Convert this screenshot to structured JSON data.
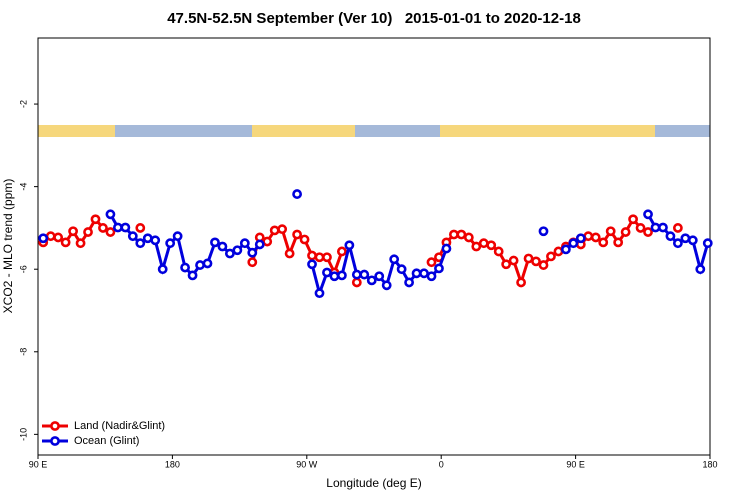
{
  "chart_data": {
    "type": "line",
    "title": "47.5N-52.5N September (Ver 10)   2015-01-01 to 2020-12-18",
    "x_label": "Longitude (deg E)",
    "y_label": "XCO2 - MLO trend (ppm)",
    "xlim": [
      90,
      540
    ],
    "ylim": [
      -10.5,
      -0.4
    ],
    "xticks": [
      {
        "value": 90,
        "label": "90 E"
      },
      180,
      {
        "value": 270,
        "label": "90 W"
      },
      {
        "value": 360,
        "label": "0"
      },
      {
        "value": 450,
        "label": "90 E"
      },
      {
        "value": 540,
        "label": "180"
      }
    ],
    "yticks": [
      -2,
      -4,
      -6,
      -8,
      -10
    ],
    "legend": "bottom-left",
    "x": [
      93.5,
      98.5,
      103.5,
      108.5,
      113.5,
      118.5,
      123.5,
      128.5,
      133.5,
      138.5,
      143.5,
      148.5,
      153.5,
      158.5,
      163.5,
      168.5,
      173.5,
      178.5,
      183.5,
      188.5,
      193.5,
      198.5,
      203.5,
      208.5,
      213.5,
      218.5,
      223.5,
      228.5,
      233.5,
      238.5,
      243.5,
      248.5,
      253.5,
      258.5,
      263.5,
      268.5,
      273.5,
      278.5,
      283.5,
      288.5,
      293.5,
      298.5,
      303.5,
      308.5,
      313.5,
      318.5,
      323.5,
      328.5,
      333.5,
      338.5,
      343.5,
      348.5,
      353.5,
      358.5,
      363.5,
      368.5,
      373.5,
      378.5,
      383.5,
      388.5,
      393.5,
      398.5,
      403.5,
      408.5,
      413.5,
      418.5,
      423.5,
      428.5,
      433.5,
      438.5,
      443.5,
      448.5,
      453.5,
      458.5,
      463.5,
      468.5,
      473.5,
      478.5,
      483.5,
      488.5,
      493.5,
      498.5,
      503.5,
      508.5,
      513.5,
      518.5,
      523.5,
      528.5,
      533.5,
      538.5
    ],
    "series": [
      {
        "name": "Land (Nadir&Glint)",
        "color": "#ee0000",
        "values": [
          -5.35,
          -5.2,
          -5.23,
          -5.35,
          -5.08,
          -5.37,
          -5.1,
          -4.79,
          -5.0,
          -5.1,
          null,
          null,
          null,
          -5.0,
          null,
          null,
          null,
          null,
          null,
          null,
          null,
          null,
          null,
          null,
          null,
          null,
          null,
          null,
          -5.83,
          -5.23,
          -5.33,
          -5.06,
          -5.03,
          -5.62,
          -5.16,
          -5.28,
          -5.67,
          -5.71,
          -5.71,
          -6.08,
          -5.57,
          null,
          -6.32,
          null,
          null,
          null,
          null,
          null,
          null,
          null,
          null,
          null,
          -5.83,
          -5.71,
          -5.35,
          -5.16,
          -5.16,
          -5.23,
          -5.45,
          -5.37,
          -5.42,
          -5.57,
          -5.88,
          -5.79,
          -6.32,
          -5.74,
          -5.81,
          -5.9,
          -5.69,
          -5.57,
          -5.45,
          -5.35,
          -5.4,
          -5.2,
          -5.23,
          -5.35,
          -5.08,
          -5.35,
          -5.1,
          -4.79,
          -5.0,
          -5.1,
          null,
          null,
          null,
          -5.0,
          null,
          null,
          null,
          null
        ]
      },
      {
        "name": "Ocean (Glint)",
        "color": "#0000dd",
        "values": [
          -5.25,
          null,
          null,
          null,
          null,
          null,
          null,
          null,
          null,
          -4.67,
          -4.99,
          -4.99,
          -5.2,
          -5.37,
          -5.25,
          -5.3,
          -6.0,
          -5.37,
          -5.2,
          -5.96,
          -6.15,
          -5.9,
          -5.86,
          -5.35,
          -5.45,
          -5.62,
          -5.54,
          -5.37,
          -5.6,
          -5.4,
          null,
          null,
          null,
          null,
          -4.18,
          null,
          -5.88,
          -6.58,
          -6.08,
          -6.17,
          -6.15,
          -5.42,
          -6.13,
          -6.13,
          -6.27,
          -6.17,
          -6.39,
          -5.76,
          -6.0,
          -6.32,
          -6.1,
          -6.1,
          -6.17,
          -5.98,
          -5.5,
          null,
          null,
          null,
          null,
          null,
          null,
          null,
          null,
          null,
          null,
          null,
          null,
          -5.08,
          null,
          null,
          -5.52,
          -5.37,
          -5.25,
          null,
          null,
          null,
          null,
          null,
          null,
          null,
          null,
          -4.67,
          -4.99,
          -4.99,
          -5.2,
          -5.37,
          -5.25,
          -5.3,
          -6.0,
          -5.37
        ]
      }
    ]
  }
}
